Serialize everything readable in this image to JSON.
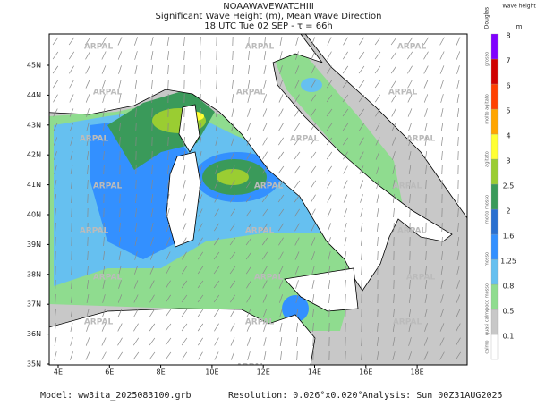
{
  "header": {
    "model_name": "NOAAWAVEWATCHIII",
    "title": "Significant Wave Height (m), Mean Wave Direction",
    "time": "18 UTC Tue 02 SEP  -  τ = 66h"
  },
  "map": {
    "watermark": "ARPAL",
    "lat_labels": [
      "45N",
      "44N",
      "43N",
      "42N",
      "41N",
      "40N",
      "39N",
      "38N",
      "37N",
      "36N",
      "35N"
    ],
    "lon_labels": [
      "4E",
      "6E",
      "8E",
      "10E",
      "12E",
      "14E",
      "16E",
      "18E"
    ]
  },
  "colorbar": {
    "title": "Wave height",
    "unit": "m",
    "scale_title": "Douglas",
    "levels": [
      "0.1",
      "0.5",
      "0.8",
      "1.25",
      "1.6",
      "2",
      "2.5",
      "3",
      "4",
      "5",
      "6",
      "7",
      "8"
    ],
    "douglas": [
      "calmo",
      "quasi calmo",
      "poco mosso",
      "mosso",
      "molto mosso",
      "agitato",
      "molto agitato",
      "grosso"
    ]
  },
  "footer": {
    "model": "Model: ww3ita_2025083100.grb",
    "resolution": "Resolution: 0.026°x0.020°",
    "analysis": "Analysis: Sun 00Z31AUG2025"
  }
}
